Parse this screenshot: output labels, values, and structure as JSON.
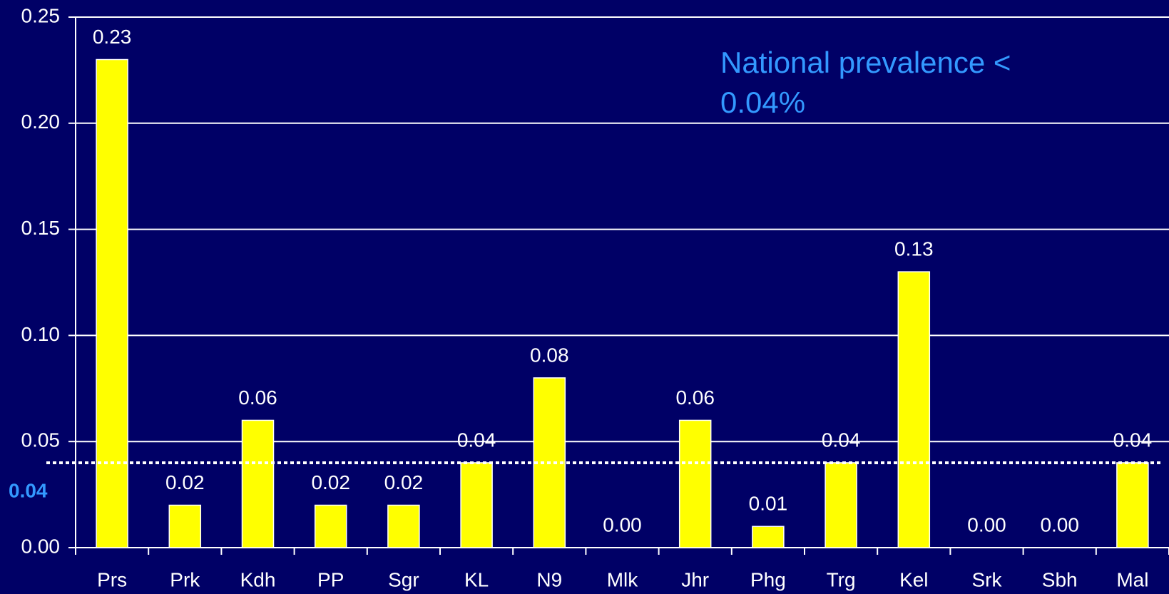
{
  "chart_data": {
    "type": "bar",
    "categories": [
      "Prs",
      "Prk",
      "Kdh",
      "PP",
      "Sgr",
      "KL",
      "N9",
      "Mlk",
      "Jhr",
      "Phg",
      "Trg",
      "Kel",
      "Srk",
      "Sbh",
      "Mal"
    ],
    "values": [
      0.23,
      0.02,
      0.06,
      0.02,
      0.02,
      0.04,
      0.08,
      0,
      0.06,
      0.01,
      0.04,
      0.13,
      0,
      0,
      0.04
    ],
    "value_labels": [
      "0.23",
      "0.02",
      "0.06",
      "0.02",
      "0.02",
      "0.04",
      "0.08",
      "0.00",
      "0.06",
      "0.01",
      "0.04",
      "0.13",
      "0.00",
      "0.00",
      "0.04"
    ],
    "color": "#ffff00",
    "ylim": [
      0,
      0.25
    ],
    "yticks": [
      {
        "value": 0,
        "label": "0.00"
      },
      {
        "value": 0.05,
        "label": "0.05"
      },
      {
        "value": 0.1,
        "label": "0.10"
      },
      {
        "value": 0.15,
        "label": "0.15"
      },
      {
        "value": 0.2,
        "label": "0.20"
      },
      {
        "value": 0.25,
        "label": "0.25"
      }
    ],
    "grid": true,
    "reference_line": {
      "value": 0.04,
      "label": "0.04",
      "color": "#3399ff"
    },
    "annotation": "National prevalence < 0.04%"
  }
}
